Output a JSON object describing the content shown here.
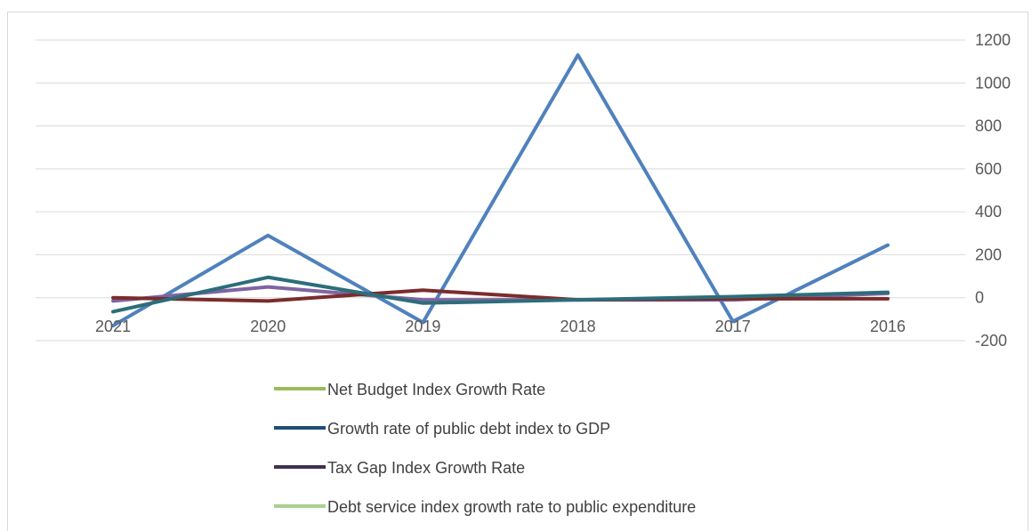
{
  "chart_data": {
    "type": "line",
    "categories": [
      "2021",
      "2020",
      "2019",
      "2018",
      "2017",
      "2016"
    ],
    "y_axis": {
      "position": "right",
      "ylim": [
        -200,
        1200
      ],
      "ticks": [
        -200,
        0,
        200,
        400,
        600,
        800,
        1000,
        1200
      ]
    },
    "grid": true,
    "legend_position": "bottom",
    "series": [
      {
        "name": "Net Budget Index Growth Rate",
        "color": "#9bbb59",
        "values": [
          null,
          null,
          null,
          null,
          null,
          null
        ]
      },
      {
        "name": "Growth rate of public debt index to GDP",
        "color": "#1f4e79",
        "values": [
          null,
          null,
          null,
          null,
          null,
          null
        ]
      },
      {
        "name": "Tax Gap Index Growth Rate",
        "color": "#403152",
        "values": [
          null,
          null,
          null,
          null,
          null,
          null
        ]
      },
      {
        "name": "Debt service index growth rate to public expenditure",
        "color": "#a9d18e",
        "values": [
          null,
          null,
          null,
          null,
          null,
          null
        ]
      },
      {
        "name": "",
        "color": "#4f81bd",
        "values": [
          -130,
          290,
          -115,
          1130,
          -110,
          245
        ]
      },
      {
        "name": "",
        "color": "#8064a2",
        "values": [
          -15,
          50,
          -10,
          -10,
          -10,
          20
        ]
      },
      {
        "name": "",
        "color": "#7b2c2c",
        "values": [
          0,
          -15,
          35,
          -10,
          -5,
          -5
        ]
      },
      {
        "name": "",
        "color": "#2c6e7a",
        "values": [
          -65,
          95,
          -25,
          -10,
          5,
          25
        ]
      }
    ]
  }
}
